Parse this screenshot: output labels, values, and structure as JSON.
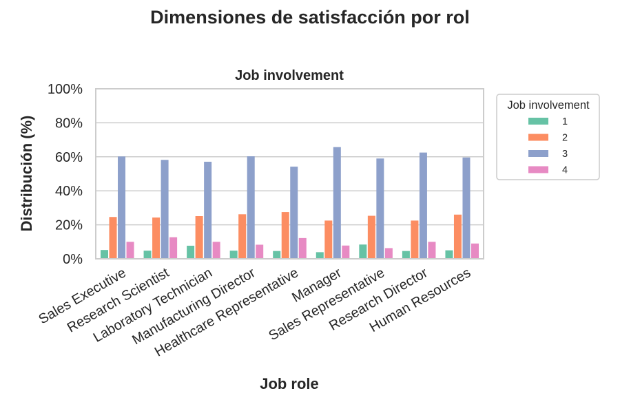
{
  "figure": {
    "suptitle": "Dimensiones de satisfacción por rol"
  },
  "chart_data": {
    "type": "bar",
    "title": "Job involvement",
    "xlabel": "Job role",
    "ylabel": "Distribución (%)",
    "ylim": [
      0,
      100
    ],
    "yticks": [
      "0%",
      "20%",
      "40%",
      "60%",
      "80%",
      "100%"
    ],
    "grid": "horizontal",
    "legend": {
      "title": "Job involvement",
      "placement": "outside-top-right"
    },
    "categories": [
      "Sales Executive",
      "Research Scientist",
      "Laboratory Technician",
      "Manufacturing Director",
      "Healthcare Representative",
      "Manager",
      "Sales Representative",
      "Research Director",
      "Human Resources"
    ],
    "series": [
      {
        "name": "1",
        "color": "#66c2a5",
        "values": [
          5.2,
          4.8,
          7.7,
          4.8,
          4.6,
          3.9,
          8.4,
          4.6,
          5.0
        ]
      },
      {
        "name": "2",
        "color": "#fc8d62",
        "values": [
          24.6,
          24.3,
          25.1,
          26.2,
          27.5,
          22.5,
          25.3,
          22.5,
          26.0
        ]
      },
      {
        "name": "3",
        "color": "#8da0cb",
        "values": [
          60.2,
          58.2,
          57.1,
          60.3,
          54.2,
          65.7,
          59.0,
          62.5,
          59.6
        ]
      },
      {
        "name": "4",
        "color": "#e78ac3",
        "values": [
          10.0,
          12.7,
          10.0,
          8.3,
          12.2,
          7.8,
          6.3,
          10.0,
          9.0
        ]
      }
    ]
  }
}
